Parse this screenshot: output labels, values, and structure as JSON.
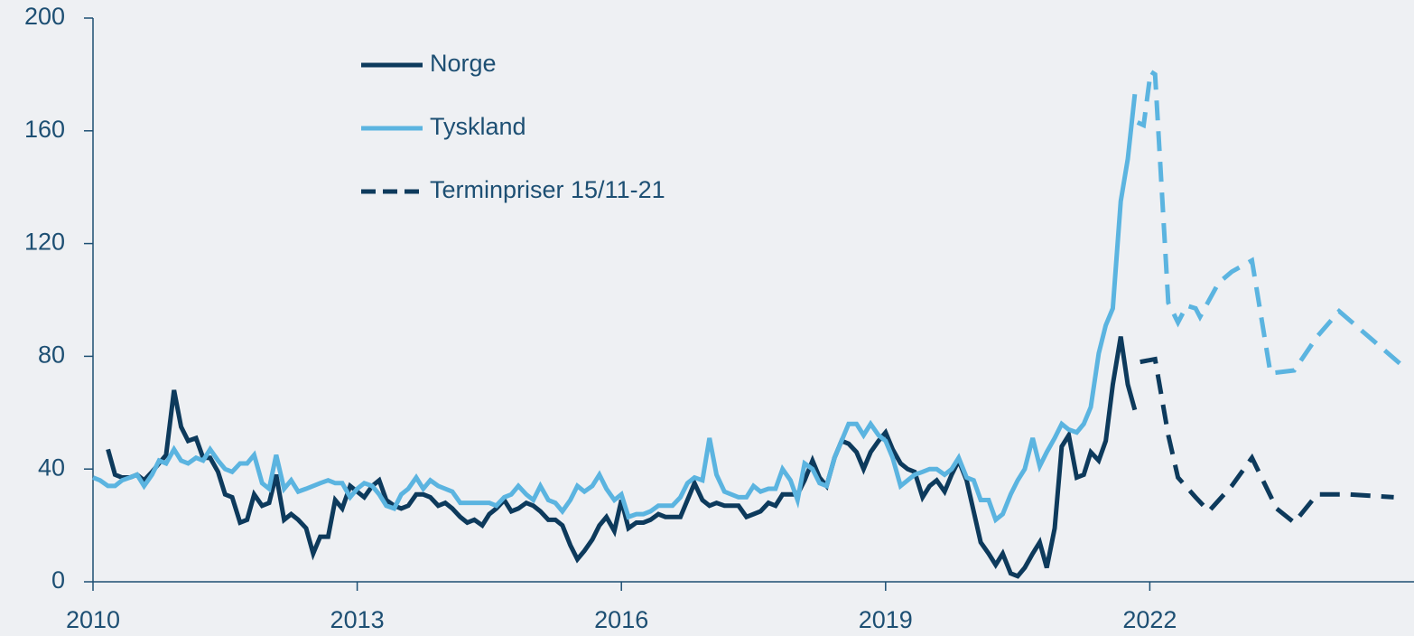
{
  "chart_data": {
    "type": "line",
    "xlim": [
      2010,
      2025
    ],
    "xticks": [
      2010,
      2013,
      2016,
      2019,
      2022
    ],
    "ylim": [
      0,
      200
    ],
    "yticks": [
      0,
      40,
      80,
      120,
      160,
      200
    ],
    "legend": "upper left",
    "x": [
      2010,
      2010.08,
      2010.17,
      2010.25,
      2010.33,
      2010.42,
      2010.5,
      2010.58,
      2010.67,
      2010.75,
      2010.83,
      2010.92,
      2011,
      2011.08,
      2011.17,
      2011.25,
      2011.33,
      2011.42,
      2011.5,
      2011.58,
      2011.67,
      2011.75,
      2011.83,
      2011.92,
      2012,
      2012.08,
      2012.17,
      2012.25,
      2012.33,
      2012.42,
      2012.5,
      2012.58,
      2012.67,
      2012.75,
      2012.83,
      2012.92,
      2013,
      2013.08,
      2013.17,
      2013.25,
      2013.33,
      2013.42,
      2013.5,
      2013.58,
      2013.67,
      2013.75,
      2013.83,
      2013.92,
      2014,
      2014.08,
      2014.17,
      2014.25,
      2014.33,
      2014.42,
      2014.5,
      2014.58,
      2014.67,
      2014.75,
      2014.83,
      2014.92,
      2015,
      2015.08,
      2015.17,
      2015.25,
      2015.33,
      2015.42,
      2015.5,
      2015.58,
      2015.67,
      2015.75,
      2015.83,
      2015.92,
      2016,
      2016.08,
      2016.17,
      2016.25,
      2016.33,
      2016.42,
      2016.5,
      2016.58,
      2016.67,
      2016.75,
      2016.83,
      2016.92,
      2017,
      2017.08,
      2017.17,
      2017.25,
      2017.33,
      2017.42,
      2017.5,
      2017.58,
      2017.67,
      2017.75,
      2017.83,
      2017.92,
      2018,
      2018.08,
      2018.17,
      2018.25,
      2018.33,
      2018.42,
      2018.5,
      2018.58,
      2018.67,
      2018.75,
      2018.83,
      2018.92,
      2019,
      2019.08,
      2019.17,
      2019.25,
      2019.33,
      2019.42,
      2019.5,
      2019.58,
      2019.67,
      2019.75,
      2019.83,
      2019.92,
      2020,
      2020.08,
      2020.17,
      2020.25,
      2020.33,
      2020.42,
      2020.5,
      2020.58,
      2020.67,
      2020.75,
      2020.83,
      2020.92,
      2021,
      2021.08,
      2021.17,
      2021.25,
      2021.33,
      2021.42,
      2021.5,
      2021.58,
      2021.67,
      2021.75,
      2021.83
    ],
    "series": [
      {
        "name": "Norge",
        "color": "#0d3a5c",
        "values": [
          null,
          null,
          47,
          38,
          37,
          37,
          38,
          36,
          39,
          42,
          45,
          68,
          55,
          50,
          51,
          44,
          44,
          39,
          31,
          30,
          21,
          22,
          31,
          27,
          28,
          38,
          22,
          24,
          22,
          19,
          10,
          16,
          16,
          29,
          26,
          34,
          32,
          30,
          34,
          36,
          29,
          27,
          26,
          27,
          31,
          31,
          30,
          27,
          28,
          26,
          23,
          21,
          22,
          20,
          24,
          26,
          29,
          25,
          26,
          28,
          27,
          25,
          22,
          22,
          20,
          13,
          8,
          11,
          15,
          20,
          23,
          18,
          29,
          19,
          21,
          21,
          22,
          24,
          23,
          23,
          23,
          29,
          35,
          29,
          27,
          28,
          27,
          27,
          27,
          23,
          24,
          25,
          28,
          27,
          31,
          31,
          31,
          36,
          43,
          37,
          34,
          44,
          50,
          49,
          46,
          40,
          46,
          50,
          53,
          47,
          42,
          40,
          39,
          30,
          34,
          36,
          32,
          38,
          43,
          36,
          25,
          14,
          10,
          6,
          10,
          3,
          2,
          5,
          10,
          14,
          5,
          19,
          48,
          52,
          37,
          38,
          46,
          43,
          50,
          70,
          87,
          70,
          61
        ]
      },
      {
        "name": "Tyskland",
        "color": "#5bb4e0",
        "values": [
          37,
          36,
          34,
          34,
          36,
          37,
          38,
          34,
          38,
          43,
          42,
          47,
          43,
          42,
          44,
          43,
          47,
          43,
          40,
          39,
          42,
          42,
          45,
          35,
          33,
          45,
          33,
          36,
          32,
          33,
          34,
          35,
          36,
          35,
          35,
          30,
          33,
          35,
          34,
          31,
          27,
          26,
          31,
          33,
          37,
          33,
          36,
          34,
          33,
          32,
          28,
          28,
          28,
          28,
          28,
          27,
          30,
          31,
          34,
          31,
          29,
          34,
          29,
          28,
          25,
          29,
          34,
          32,
          34,
          38,
          33,
          29,
          31,
          23,
          24,
          24,
          25,
          27,
          27,
          27,
          30,
          35,
          37,
          36,
          51,
          38,
          32,
          31,
          30,
          30,
          34,
          32,
          33,
          33,
          40,
          36,
          29,
          42,
          40,
          35,
          34,
          44,
          50,
          56,
          56,
          52,
          56,
          52,
          50,
          44,
          34,
          36,
          38,
          39,
          40,
          40,
          38,
          40,
          44,
          37,
          36,
          29,
          29,
          22,
          24,
          31,
          36,
          40,
          51,
          41,
          46,
          51,
          56,
          54,
          53,
          56,
          62,
          81,
          91,
          97,
          135,
          150,
          173
        ]
      },
      {
        "name": "Terminpriser 15/11-21",
        "color": "#0d3a5c",
        "dash": true,
        "x": [
          2021.89,
          2022.06,
          2022.21,
          2022.32,
          2022.52,
          2022.67,
          2022.93,
          2023.16,
          2023.44,
          2023.64,
          2023.9,
          2024.26,
          2024.77
        ],
        "values": [
          78,
          79,
          52,
          37,
          30,
          25,
          34,
          44,
          26,
          21,
          31,
          31,
          30
        ]
      },
      {
        "color": "#5bb4e0",
        "dash": true,
        "x": [
          2021.86,
          2021.93,
          2022.01,
          2022.06,
          2022.21,
          2022.32,
          2022.42,
          2022.52,
          2022.57,
          2022.78,
          2022.93,
          2023.16,
          2023.37,
          2023.64,
          2023.9,
          2024.15,
          2024.93
        ],
        "values": [
          163,
          162,
          181,
          180,
          99,
          92,
          98,
          97,
          94,
          106,
          110,
          114,
          74,
          75,
          87,
          96,
          75
        ]
      }
    ]
  }
}
